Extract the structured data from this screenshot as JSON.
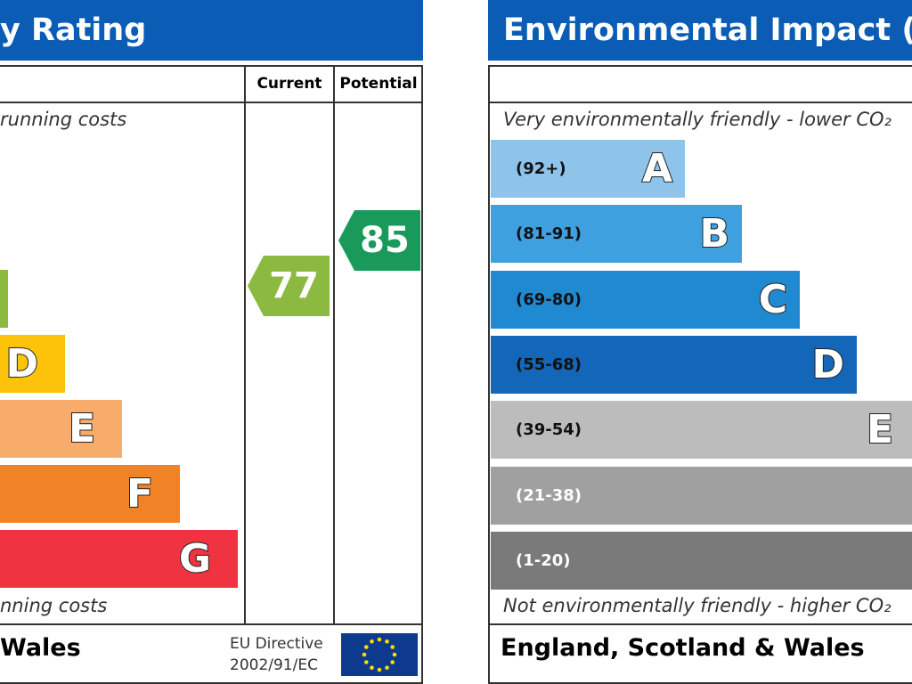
{
  "left": {
    "title": "y Rating",
    "col_current": "Current",
    "col_potential": "Potential",
    "top_note": "running costs",
    "bands": [
      "D",
      "E",
      "F",
      "G"
    ],
    "current": "77",
    "potential": "85",
    "bottom_note": "nning costs",
    "footer": "Wales",
    "directive": [
      "EU Directive",
      "2002/91/EC"
    ]
  },
  "right": {
    "title": "Environmental Impact (C",
    "top_note": "Very environmentally friendly - lower CO₂",
    "bands": [
      {
        "range": "(92+)",
        "letter": "A"
      },
      {
        "range": "(81-91)",
        "letter": "B"
      },
      {
        "range": "(69-80)",
        "letter": "C"
      },
      {
        "range": "(55-68)",
        "letter": "D"
      },
      {
        "range": "(39-54)",
        "letter": "E"
      },
      {
        "range": "(21-38)"
      },
      {
        "range": "(1-20)"
      }
    ],
    "bottom_note": "Not environmentally friendly - higher CO₂",
    "footer": "England, Scotland & Wales"
  }
}
